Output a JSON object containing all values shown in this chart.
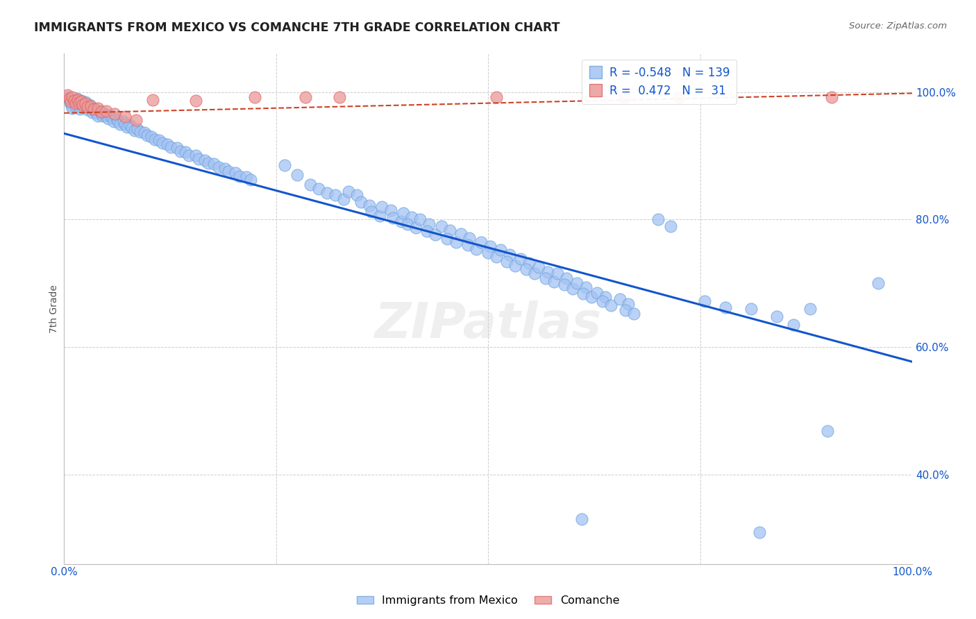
{
  "title": "IMMIGRANTS FROM MEXICO VS COMANCHE 7TH GRADE CORRELATION CHART",
  "source": "Source: ZipAtlas.com",
  "ylabel_label": "7th Grade",
  "xlim": [
    0.0,
    1.0
  ],
  "ylim": [
    0.26,
    1.06
  ],
  "legend_blue_label": "Immigrants from Mexico",
  "legend_pink_label": "Comanche",
  "blue_color": "#a4c2f4",
  "blue_edge_color": "#6fa8dc",
  "pink_color": "#ea9999",
  "pink_edge_color": "#e06666",
  "blue_line_color": "#1155cc",
  "pink_line_color": "#cc4125",
  "grid_color": "#cccccc",
  "title_color": "#212121",
  "source_color": "#666666",
  "ytick_color": "#1155cc",
  "xtick_color": "#1155cc",
  "blue_trend_x": [
    0.0,
    1.0
  ],
  "blue_trend_y": [
    0.935,
    0.577
  ],
  "pink_trend_x": [
    0.0,
    1.0
  ],
  "pink_trend_y": [
    0.967,
    0.998
  ],
  "blue_scatter": [
    [
      0.004,
      0.992
    ],
    [
      0.006,
      0.988
    ],
    [
      0.007,
      0.983
    ],
    [
      0.009,
      0.979
    ],
    [
      0.01,
      0.975
    ],
    [
      0.011,
      0.988
    ],
    [
      0.012,
      0.985
    ],
    [
      0.013,
      0.982
    ],
    [
      0.014,
      0.978
    ],
    [
      0.015,
      0.99
    ],
    [
      0.016,
      0.986
    ],
    [
      0.017,
      0.982
    ],
    [
      0.018,
      0.977
    ],
    [
      0.019,
      0.973
    ],
    [
      0.02,
      0.987
    ],
    [
      0.021,
      0.984
    ],
    [
      0.022,
      0.98
    ],
    [
      0.023,
      0.976
    ],
    [
      0.025,
      0.984
    ],
    [
      0.026,
      0.98
    ],
    [
      0.027,
      0.976
    ],
    [
      0.028,
      0.972
    ],
    [
      0.03,
      0.98
    ],
    [
      0.031,
      0.976
    ],
    [
      0.032,
      0.972
    ],
    [
      0.033,
      0.968
    ],
    [
      0.035,
      0.975
    ],
    [
      0.036,
      0.971
    ],
    [
      0.038,
      0.967
    ],
    [
      0.04,
      0.963
    ],
    [
      0.042,
      0.97
    ],
    [
      0.044,
      0.966
    ],
    [
      0.046,
      0.962
    ],
    [
      0.048,
      0.966
    ],
    [
      0.05,
      0.962
    ],
    [
      0.052,
      0.958
    ],
    [
      0.055,
      0.963
    ],
    [
      0.057,
      0.959
    ],
    [
      0.059,
      0.954
    ],
    [
      0.062,
      0.958
    ],
    [
      0.064,
      0.954
    ],
    [
      0.066,
      0.949
    ],
    [
      0.07,
      0.954
    ],
    [
      0.072,
      0.95
    ],
    [
      0.074,
      0.945
    ],
    [
      0.078,
      0.948
    ],
    [
      0.08,
      0.944
    ],
    [
      0.083,
      0.94
    ],
    [
      0.087,
      0.942
    ],
    [
      0.09,
      0.938
    ],
    [
      0.095,
      0.936
    ],
    [
      0.098,
      0.932
    ],
    [
      0.103,
      0.93
    ],
    [
      0.107,
      0.926
    ],
    [
      0.112,
      0.924
    ],
    [
      0.116,
      0.92
    ],
    [
      0.122,
      0.918
    ],
    [
      0.126,
      0.914
    ],
    [
      0.133,
      0.912
    ],
    [
      0.137,
      0.907
    ],
    [
      0.143,
      0.906
    ],
    [
      0.147,
      0.901
    ],
    [
      0.155,
      0.9
    ],
    [
      0.159,
      0.895
    ],
    [
      0.166,
      0.893
    ],
    [
      0.17,
      0.888
    ],
    [
      0.177,
      0.887
    ],
    [
      0.182,
      0.882
    ],
    [
      0.19,
      0.88
    ],
    [
      0.194,
      0.875
    ],
    [
      0.202,
      0.873
    ],
    [
      0.207,
      0.868
    ],
    [
      0.215,
      0.867
    ],
    [
      0.22,
      0.862
    ],
    [
      0.26,
      0.885
    ],
    [
      0.275,
      0.87
    ],
    [
      0.29,
      0.855
    ],
    [
      0.3,
      0.848
    ],
    [
      0.31,
      0.842
    ],
    [
      0.32,
      0.838
    ],
    [
      0.33,
      0.832
    ],
    [
      0.335,
      0.844
    ],
    [
      0.345,
      0.838
    ],
    [
      0.35,
      0.828
    ],
    [
      0.36,
      0.822
    ],
    [
      0.362,
      0.812
    ],
    [
      0.372,
      0.806
    ],
    [
      0.375,
      0.82
    ],
    [
      0.385,
      0.814
    ],
    [
      0.388,
      0.803
    ],
    [
      0.398,
      0.797
    ],
    [
      0.4,
      0.81
    ],
    [
      0.41,
      0.804
    ],
    [
      0.405,
      0.793
    ],
    [
      0.415,
      0.787
    ],
    [
      0.42,
      0.8
    ],
    [
      0.43,
      0.793
    ],
    [
      0.428,
      0.782
    ],
    [
      0.438,
      0.776
    ],
    [
      0.445,
      0.79
    ],
    [
      0.455,
      0.783
    ],
    [
      0.452,
      0.77
    ],
    [
      0.462,
      0.764
    ],
    [
      0.468,
      0.778
    ],
    [
      0.478,
      0.771
    ],
    [
      0.476,
      0.76
    ],
    [
      0.486,
      0.754
    ],
    [
      0.492,
      0.765
    ],
    [
      0.502,
      0.758
    ],
    [
      0.5,
      0.748
    ],
    [
      0.51,
      0.742
    ],
    [
      0.515,
      0.752
    ],
    [
      0.525,
      0.745
    ],
    [
      0.522,
      0.734
    ],
    [
      0.532,
      0.728
    ],
    [
      0.538,
      0.738
    ],
    [
      0.548,
      0.732
    ],
    [
      0.545,
      0.722
    ],
    [
      0.555,
      0.716
    ],
    [
      0.56,
      0.725
    ],
    [
      0.57,
      0.718
    ],
    [
      0.568,
      0.708
    ],
    [
      0.578,
      0.702
    ],
    [
      0.582,
      0.715
    ],
    [
      0.592,
      0.708
    ],
    [
      0.59,
      0.698
    ],
    [
      0.6,
      0.692
    ],
    [
      0.605,
      0.7
    ],
    [
      0.615,
      0.694
    ],
    [
      0.612,
      0.684
    ],
    [
      0.622,
      0.678
    ],
    [
      0.628,
      0.685
    ],
    [
      0.638,
      0.679
    ],
    [
      0.635,
      0.672
    ],
    [
      0.645,
      0.665
    ],
    [
      0.655,
      0.675
    ],
    [
      0.665,
      0.668
    ],
    [
      0.662,
      0.658
    ],
    [
      0.672,
      0.652
    ],
    [
      0.7,
      0.8
    ],
    [
      0.715,
      0.79
    ],
    [
      0.755,
      0.672
    ],
    [
      0.78,
      0.662
    ],
    [
      0.81,
      0.66
    ],
    [
      0.84,
      0.648
    ],
    [
      0.86,
      0.635
    ],
    [
      0.88,
      0.66
    ],
    [
      0.9,
      0.468
    ],
    [
      0.96,
      0.7
    ],
    [
      0.61,
      0.33
    ],
    [
      0.82,
      0.31
    ]
  ],
  "pink_scatter": [
    [
      0.004,
      0.995
    ],
    [
      0.006,
      0.99
    ],
    [
      0.008,
      0.985
    ],
    [
      0.01,
      0.992
    ],
    [
      0.012,
      0.987
    ],
    [
      0.014,
      0.982
    ],
    [
      0.016,
      0.988
    ],
    [
      0.018,
      0.983
    ],
    [
      0.02,
      0.985
    ],
    [
      0.022,
      0.98
    ],
    [
      0.025,
      0.982
    ],
    [
      0.028,
      0.977
    ],
    [
      0.032,
      0.978
    ],
    [
      0.035,
      0.973
    ],
    [
      0.04,
      0.974
    ],
    [
      0.044,
      0.969
    ],
    [
      0.05,
      0.97
    ],
    [
      0.06,
      0.966
    ],
    [
      0.072,
      0.961
    ],
    [
      0.085,
      0.956
    ],
    [
      0.105,
      0.988
    ],
    [
      0.155,
      0.986
    ],
    [
      0.225,
      0.992
    ],
    [
      0.285,
      0.992
    ],
    [
      0.325,
      0.992
    ],
    [
      0.51,
      0.992
    ],
    [
      0.66,
      0.992
    ],
    [
      0.725,
      0.992
    ],
    [
      0.905,
      0.992
    ]
  ]
}
